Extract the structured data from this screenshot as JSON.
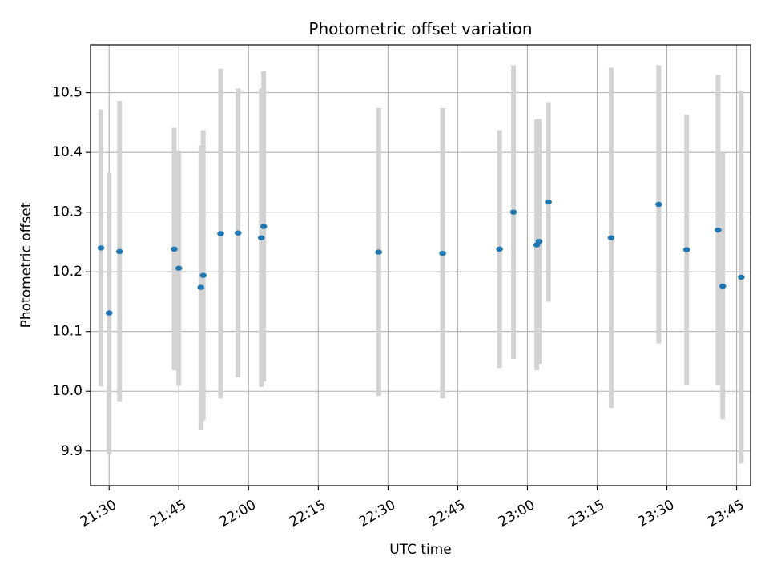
{
  "chart_data": {
    "type": "scatter",
    "title": "Photometric offset variation",
    "xlabel": "UTC time",
    "ylabel": "Photometric offset",
    "x_ticks": [
      "21:30",
      "21:45",
      "22:00",
      "22:15",
      "22:30",
      "22:45",
      "23:00",
      "23:15",
      "23:30",
      "23:45"
    ],
    "y_ticks": [
      "9.9",
      "10.0",
      "10.1",
      "10.2",
      "10.3",
      "10.4",
      "10.5"
    ],
    "xlim": [
      "21:26:00",
      "23:48:00"
    ],
    "ylim": [
      9.842,
      10.58
    ],
    "grid": true,
    "colors": {
      "point": "#1f77b4",
      "errorbar": "#d3d3d3",
      "grid": "#b0b0b0"
    },
    "points": [
      {
        "time": "21:28:15",
        "value": 10.24,
        "error": 0.232
      },
      {
        "time": "21:30:00",
        "value": 10.131,
        "error": 0.235
      },
      {
        "time": "21:32:15",
        "value": 10.234,
        "error": 0.252
      },
      {
        "time": "21:44:00",
        "value": 10.238,
        "error": 0.203
      },
      {
        "time": "21:45:00",
        "value": 10.206,
        "error": 0.197
      },
      {
        "time": "21:49:45",
        "value": 10.174,
        "error": 0.238
      },
      {
        "time": "21:50:15",
        "value": 10.194,
        "error": 0.243
      },
      {
        "time": "21:54:00",
        "value": 10.264,
        "error": 0.276
      },
      {
        "time": "21:57:45",
        "value": 10.265,
        "error": 0.242
      },
      {
        "time": "22:02:45",
        "value": 10.257,
        "error": 0.25
      },
      {
        "time": "22:03:15",
        "value": 10.276,
        "error": 0.26
      },
      {
        "time": "22:28:00",
        "value": 10.233,
        "error": 0.241
      },
      {
        "time": "22:41:45",
        "value": 10.231,
        "error": 0.243
      },
      {
        "time": "22:54:00",
        "value": 10.238,
        "error": 0.199
      },
      {
        "time": "22:57:00",
        "value": 10.3,
        "error": 0.246
      },
      {
        "time": "23:02:00",
        "value": 10.245,
        "error": 0.21
      },
      {
        "time": "23:02:30",
        "value": 10.251,
        "error": 0.205
      },
      {
        "time": "23:04:30",
        "value": 10.317,
        "error": 0.167
      },
      {
        "time": "23:18:00",
        "value": 10.257,
        "error": 0.285
      },
      {
        "time": "23:28:15",
        "value": 10.313,
        "error": 0.233
      },
      {
        "time": "23:34:15",
        "value": 10.237,
        "error": 0.226
      },
      {
        "time": "23:41:00",
        "value": 10.27,
        "error": 0.26
      },
      {
        "time": "23:42:00",
        "value": 10.176,
        "error": 0.223
      },
      {
        "time": "23:46:00",
        "value": 10.191,
        "error": 0.312
      }
    ]
  }
}
